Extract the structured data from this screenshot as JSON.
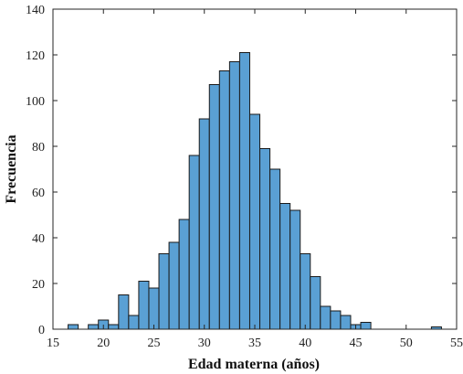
{
  "chart_data": {
    "type": "bar",
    "title": "",
    "xlabel": "Edad materna (años)",
    "ylabel": "Frecuencia",
    "xlim": [
      15,
      55
    ],
    "ylim": [
      0,
      140
    ],
    "x_ticks": [
      15,
      20,
      25,
      30,
      35,
      40,
      45,
      50,
      55
    ],
    "y_ticks": [
      0,
      20,
      40,
      60,
      80,
      100,
      120,
      140
    ],
    "bin_width": 1,
    "bins": [
      {
        "start": 16.5,
        "value": 2
      },
      {
        "start": 18.5,
        "value": 2
      },
      {
        "start": 19.5,
        "value": 4
      },
      {
        "start": 20.5,
        "value": 2
      },
      {
        "start": 21.5,
        "value": 15
      },
      {
        "start": 22.5,
        "value": 6
      },
      {
        "start": 23.5,
        "value": 21
      },
      {
        "start": 24.5,
        "value": 18
      },
      {
        "start": 25.5,
        "value": 33
      },
      {
        "start": 26.5,
        "value": 38
      },
      {
        "start": 27.5,
        "value": 48
      },
      {
        "start": 28.5,
        "value": 76
      },
      {
        "start": 29.5,
        "value": 92
      },
      {
        "start": 30.5,
        "value": 107
      },
      {
        "start": 31.5,
        "value": 113
      },
      {
        "start": 32.5,
        "value": 117
      },
      {
        "start": 33.5,
        "value": 121
      },
      {
        "start": 34.5,
        "value": 94
      },
      {
        "start": 35.5,
        "value": 79
      },
      {
        "start": 36.5,
        "value": 70
      },
      {
        "start": 37.5,
        "value": 55
      },
      {
        "start": 38.5,
        "value": 52
      },
      {
        "start": 39.5,
        "value": 33
      },
      {
        "start": 40.5,
        "value": 23
      },
      {
        "start": 41.5,
        "value": 10
      },
      {
        "start": 42.5,
        "value": 8
      },
      {
        "start": 43.5,
        "value": 6
      },
      {
        "start": 44.5,
        "value": 2
      },
      {
        "start": 45.5,
        "value": 3
      },
      {
        "start": 52.5,
        "value": 1
      }
    ],
    "grid": false,
    "bar_color": "#5aa0d4",
    "edge_color": "#1a1a1a"
  }
}
